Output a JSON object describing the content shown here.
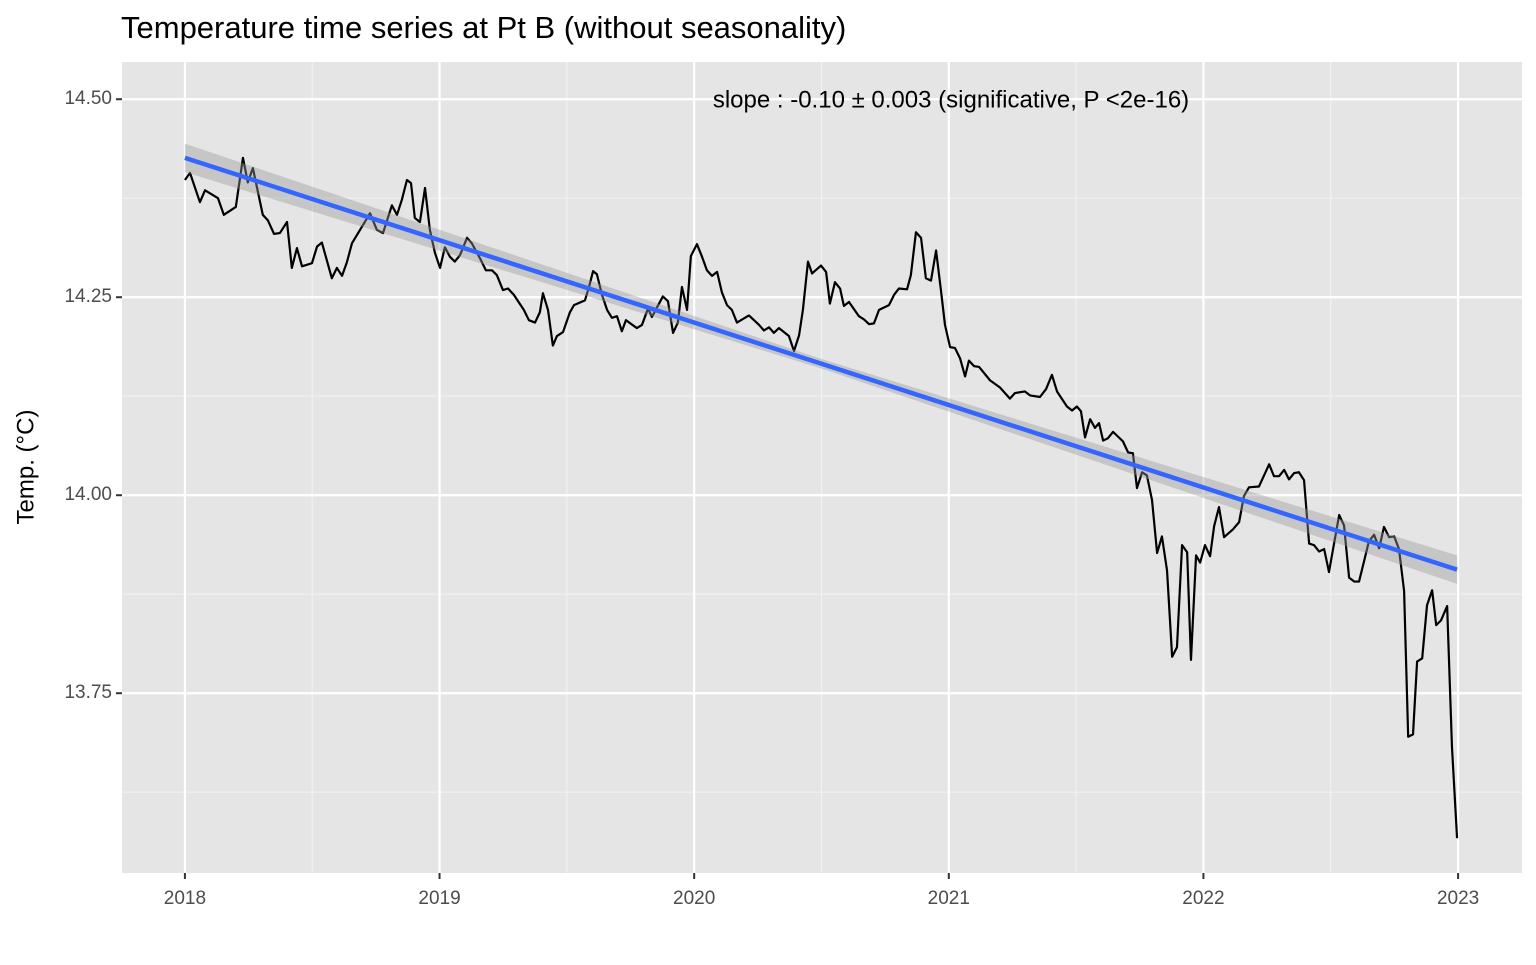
{
  "chart_data": {
    "type": "line",
    "title": "Temperature time series at Pt B (without seasonality)",
    "y_label": "Temp. (°C)",
    "annotation": "slope :  -0.10 ± 0.003 (significative, P <2e-16)",
    "xlim": [
      2017.753,
      2023.251
    ],
    "xticks": [
      2018,
      2019,
      2020,
      2021,
      2022,
      2023
    ],
    "x_minor_breaks": [
      2018.5,
      2019.5,
      2020.5,
      2021.5,
      2022.5
    ],
    "ylim": [
      13.523,
      14.547
    ],
    "yticks": [
      {
        "value": 14.5,
        "label": "14.50"
      },
      14.25,
      {
        "value": 14.0,
        "label": "14.00"
      },
      13.75
    ],
    "y_minor_breaks": [
      14.375,
      14.125,
      13.875,
      13.625
    ],
    "grid": true,
    "series": [
      {
        "color": "#000000",
        "x": [
          2018.0,
          2018.02,
          2018.059,
          2018.079,
          2018.13,
          2018.153,
          2018.2,
          2018.228,
          2018.247,
          2018.267,
          2018.306,
          2018.326,
          2018.35,
          2018.373,
          2018.401,
          2018.42,
          2018.44,
          2018.46,
          2018.499,
          2018.519,
          2018.538,
          2018.577,
          2018.597,
          2018.617,
          2018.636,
          2018.656,
          2018.727,
          2018.754,
          2018.778,
          2018.813,
          2018.833,
          2018.852,
          2018.872,
          2018.888,
          2018.903,
          2018.923,
          2018.943,
          2018.962,
          2018.982,
          2019.002,
          2019.021,
          2019.041,
          2019.06,
          2019.08,
          2019.108,
          2019.127,
          2019.159,
          2019.182,
          2019.206,
          2019.225,
          2019.249,
          2019.269,
          2019.292,
          2019.331,
          2019.351,
          2019.375,
          2019.394,
          2019.406,
          2019.426,
          2019.445,
          2019.461,
          2019.485,
          2019.512,
          2019.528,
          2019.571,
          2019.587,
          2019.603,
          2019.618,
          2019.638,
          2019.658,
          2019.677,
          2019.697,
          2019.716,
          2019.732,
          2019.775,
          2019.795,
          2019.819,
          2019.834,
          2019.877,
          2019.897,
          2019.917,
          2019.936,
          2019.952,
          2019.972,
          2019.987,
          2020.011,
          2020.031,
          2020.05,
          2020.07,
          2020.09,
          2020.109,
          2020.129,
          2020.148,
          2020.168,
          2020.215,
          2020.255,
          2020.274,
          2020.294,
          2020.313,
          2020.333,
          2020.372,
          2020.392,
          2020.412,
          2020.427,
          2020.447,
          2020.463,
          2020.498,
          2020.518,
          2020.533,
          2020.553,
          2020.573,
          2020.588,
          2020.608,
          2020.647,
          2020.667,
          2020.687,
          2020.706,
          2020.726,
          2020.765,
          2020.785,
          2020.804,
          2020.836,
          2020.851,
          2020.871,
          2020.891,
          2020.91,
          2020.93,
          2020.95,
          2020.969,
          2020.985,
          2021.005,
          2021.024,
          2021.044,
          2021.064,
          2021.079,
          2021.099,
          2021.119,
          2021.162,
          2021.201,
          2021.24,
          2021.26,
          2021.299,
          2021.319,
          2021.358,
          2021.382,
          2021.405,
          2021.425,
          2021.464,
          2021.484,
          2021.503,
          2021.519,
          2021.535,
          2021.555,
          2021.574,
          2021.59,
          2021.606,
          2021.625,
          2021.645,
          2021.684,
          2021.704,
          2021.723,
          2021.739,
          2021.759,
          2021.778,
          2021.798,
          2021.818,
          2021.837,
          2021.857,
          2021.877,
          2021.896,
          2021.916,
          2021.936,
          2021.951,
          2021.971,
          2021.987,
          2022.006,
          2022.026,
          2022.042,
          2022.061,
          2022.081,
          2022.116,
          2022.14,
          2022.159,
          2022.179,
          2022.218,
          2022.238,
          2022.258,
          2022.277,
          2022.297,
          2022.317,
          2022.336,
          2022.356,
          2022.375,
          2022.395,
          2022.415,
          2022.434,
          2022.454,
          2022.474,
          2022.493,
          2022.509,
          2022.533,
          2022.552,
          2022.572,
          2022.592,
          2022.611,
          2022.631,
          2022.65,
          2022.67,
          2022.69,
          2022.709,
          2022.729,
          2022.749,
          2022.768,
          2022.788,
          2022.804,
          2022.823,
          2022.839,
          2022.859,
          2022.878,
          2022.898,
          2022.914,
          2022.933,
          2022.957,
          2022.976,
          2022.996
        ],
        "values": [
          14.398,
          14.407,
          14.37,
          14.385,
          14.375,
          14.354,
          14.364,
          14.426,
          14.395,
          14.413,
          14.354,
          14.347,
          14.33,
          14.331,
          14.345,
          14.287,
          14.312,
          14.289,
          14.293,
          14.314,
          14.319,
          14.274,
          14.287,
          14.277,
          14.294,
          14.318,
          14.356,
          14.335,
          14.331,
          14.366,
          14.354,
          14.373,
          14.398,
          14.394,
          14.35,
          14.345,
          14.388,
          14.335,
          14.306,
          14.287,
          14.313,
          14.301,
          14.295,
          14.303,
          14.325,
          14.318,
          14.299,
          14.284,
          14.284,
          14.278,
          14.259,
          14.261,
          14.253,
          14.234,
          14.221,
          14.218,
          14.231,
          14.255,
          14.234,
          14.189,
          14.201,
          14.206,
          14.231,
          14.24,
          14.246,
          14.263,
          14.283,
          14.279,
          14.253,
          14.234,
          14.224,
          14.226,
          14.207,
          14.221,
          14.211,
          14.215,
          14.236,
          14.225,
          14.251,
          14.245,
          14.205,
          14.218,
          14.263,
          14.234,
          14.302,
          14.317,
          14.301,
          14.284,
          14.277,
          14.282,
          14.256,
          14.24,
          14.234,
          14.218,
          14.227,
          14.215,
          14.208,
          14.212,
          14.205,
          14.211,
          14.201,
          14.182,
          14.202,
          14.234,
          14.295,
          14.28,
          14.29,
          14.282,
          14.242,
          14.269,
          14.261,
          14.239,
          14.244,
          14.226,
          14.222,
          14.216,
          14.217,
          14.234,
          14.24,
          14.253,
          14.261,
          14.26,
          14.278,
          14.332,
          14.325,
          14.274,
          14.271,
          14.309,
          14.259,
          14.215,
          14.187,
          14.186,
          14.173,
          14.15,
          14.17,
          14.163,
          14.162,
          14.145,
          14.136,
          14.122,
          14.129,
          14.131,
          14.126,
          14.124,
          14.134,
          14.152,
          14.131,
          14.112,
          14.107,
          14.112,
          14.106,
          14.073,
          14.096,
          14.085,
          14.091,
          14.069,
          14.072,
          14.08,
          14.068,
          14.054,
          14.053,
          14.009,
          14.029,
          14.025,
          13.994,
          13.927,
          13.948,
          13.905,
          13.796,
          13.808,
          13.937,
          13.928,
          13.792,
          13.924,
          13.915,
          13.937,
          13.923,
          13.961,
          13.985,
          13.947,
          13.957,
          13.966,
          13.999,
          14.01,
          14.011,
          14.025,
          14.039,
          14.024,
          14.024,
          14.032,
          14.02,
          14.028,
          14.029,
          14.019,
          13.939,
          13.937,
          13.929,
          13.932,
          13.903,
          13.932,
          13.975,
          13.962,
          13.896,
          13.891,
          13.891,
          13.917,
          13.942,
          13.95,
          13.933,
          13.96,
          13.947,
          13.948,
          13.932,
          13.879,
          13.695,
          13.698,
          13.79,
          13.794,
          13.861,
          13.88,
          13.836,
          13.842,
          13.86,
          13.682,
          13.567
        ]
      }
    ],
    "trend": {
      "color": "#3366ff",
      "band_color": "#999999",
      "x": [
        2018.0,
        2020.5,
        2022.996
      ],
      "values": [
        14.426,
        14.166,
        13.906
      ],
      "lower": [
        14.408,
        14.16,
        13.888
      ],
      "upper": [
        14.444,
        14.172,
        13.924
      ]
    }
  }
}
